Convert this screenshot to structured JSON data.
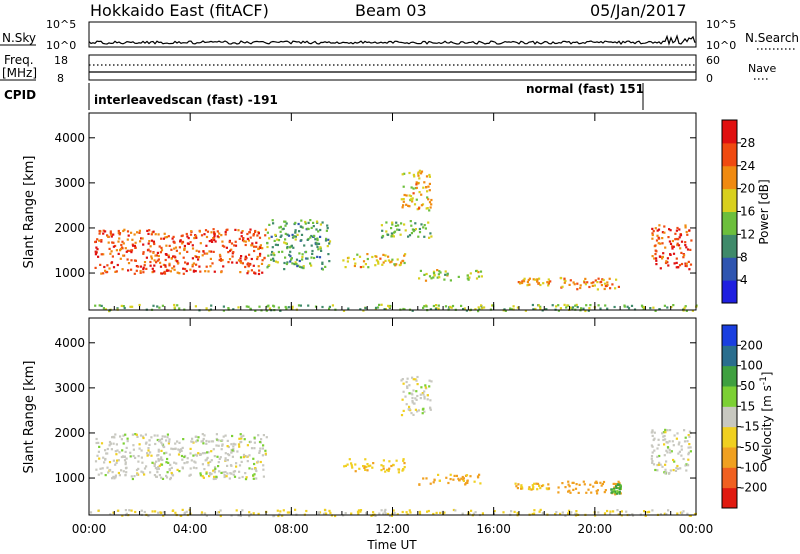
{
  "header": {
    "station": "Hokkaido East (fitACF)",
    "beam": "Beam 03",
    "date": "05/Jan/2017"
  },
  "top_panels": {
    "nsky_label": "N.Sky",
    "nsky_ticks": [
      "10^5",
      "10^0"
    ],
    "nsearch_label": "N.Search",
    "nsearch_ticks": [
      "10^5",
      "10^0"
    ],
    "freq_label": "Freq.",
    "freq_unit": "[MHz]",
    "freq_ticks": [
      "18",
      "8"
    ],
    "nave_label": "Nave",
    "nave_ticks": [
      "60",
      "0"
    ],
    "cpid_label": "CPID",
    "cpid_segments": [
      {
        "name": "interleavedscan (fast) -191",
        "start": 0,
        "end": 21.9
      },
      {
        "name": "normal (fast) 151",
        "start": 21.9,
        "end": 24
      }
    ]
  },
  "chart_data": [
    {
      "type": "heatmap",
      "name": "power",
      "ylabel": "Slant Range [km]",
      "yticks": [
        1000,
        2000,
        3000,
        4000
      ],
      "ylim": [
        180,
        4550
      ],
      "xlim": [
        0,
        24
      ],
      "colorbar_label": "Power [dB]",
      "colorbar_ticks": [
        "4",
        "8",
        "12",
        "16",
        "20",
        "24",
        "28"
      ],
      "colorbar_range": [
        0,
        32
      ],
      "colorbar_colors": [
        "#1f1fe0",
        "#2f55b0",
        "#3f8a6a",
        "#6cbf3c",
        "#d8d01e",
        "#f08a10",
        "#f04a10",
        "#e01010"
      ],
      "regions": [
        {
          "t0": 0.2,
          "t1": 7.0,
          "r0": 1000,
          "r1": 2000,
          "value": 26
        },
        {
          "t0": 7.0,
          "t1": 9.5,
          "r0": 1100,
          "r1": 2200,
          "value": 12
        },
        {
          "t0": 10.0,
          "t1": 12.5,
          "r0": 1150,
          "r1": 1450,
          "value": 20
        },
        {
          "t0": 11.5,
          "t1": 13.5,
          "r0": 1800,
          "r1": 2200,
          "value": 13
        },
        {
          "t0": 12.3,
          "t1": 13.5,
          "r0": 2400,
          "r1": 3300,
          "value": 20
        },
        {
          "t0": 13.0,
          "t1": 15.5,
          "r0": 850,
          "r1": 1100,
          "value": 16
        },
        {
          "t0": 16.8,
          "t1": 18.2,
          "r0": 750,
          "r1": 900,
          "value": 22
        },
        {
          "t0": 18.5,
          "t1": 21.0,
          "r0": 650,
          "r1": 950,
          "value": 22
        },
        {
          "t0": 22.2,
          "t1": 23.8,
          "r0": 1100,
          "r1": 2100,
          "value": 27
        },
        {
          "t0": 0.0,
          "t1": 24.0,
          "r0": 180,
          "r1": 320,
          "value": 14
        }
      ]
    },
    {
      "type": "heatmap",
      "name": "velocity",
      "ylabel": "Slant Range [km]",
      "yticks": [
        1000,
        2000,
        3000,
        4000
      ],
      "ylim": [
        180,
        4550
      ],
      "xlim": [
        0,
        24
      ],
      "colorbar_label": "Velocity [m s^-1]",
      "colorbar_ticks": [
        "200",
        "100",
        "50",
        "15",
        "-15",
        "-50",
        "-100",
        "-200"
      ],
      "colorbar_colors": [
        "#1a3fe0",
        "#2a6e8e",
        "#3fa040",
        "#7cd034",
        "#c8c8c0",
        "#f0d020",
        "#f0a020",
        "#f06020",
        "#e01a10"
      ],
      "regions": [
        {
          "t0": 0.2,
          "t1": 7.0,
          "r0": 1000,
          "r1": 2000,
          "value": 0
        },
        {
          "t0": 10.0,
          "t1": 12.5,
          "r0": 1150,
          "r1": 1450,
          "value": -40
        },
        {
          "t0": 12.3,
          "t1": 13.5,
          "r0": 2400,
          "r1": 3300,
          "value": 0
        },
        {
          "t0": 13.0,
          "t1": 15.5,
          "r0": 850,
          "r1": 1100,
          "value": -60
        },
        {
          "t0": 16.8,
          "t1": 18.2,
          "r0": 750,
          "r1": 900,
          "value": -40
        },
        {
          "t0": 18.5,
          "t1": 21.0,
          "r0": 650,
          "r1": 950,
          "value": -80
        },
        {
          "t0": 20.6,
          "t1": 21.0,
          "r0": 650,
          "r1": 900,
          "value": 60
        },
        {
          "t0": 22.2,
          "t1": 23.8,
          "r0": 1100,
          "r1": 2100,
          "value": 0
        },
        {
          "t0": 0.0,
          "t1": 24.0,
          "r0": 180,
          "r1": 320,
          "value": -20
        }
      ]
    }
  ],
  "x_axis": {
    "ticks": [
      "00:00",
      "04:00",
      "08:00",
      "12:00",
      "16:00",
      "20:00",
      "00:00"
    ],
    "label": "Time UT"
  }
}
